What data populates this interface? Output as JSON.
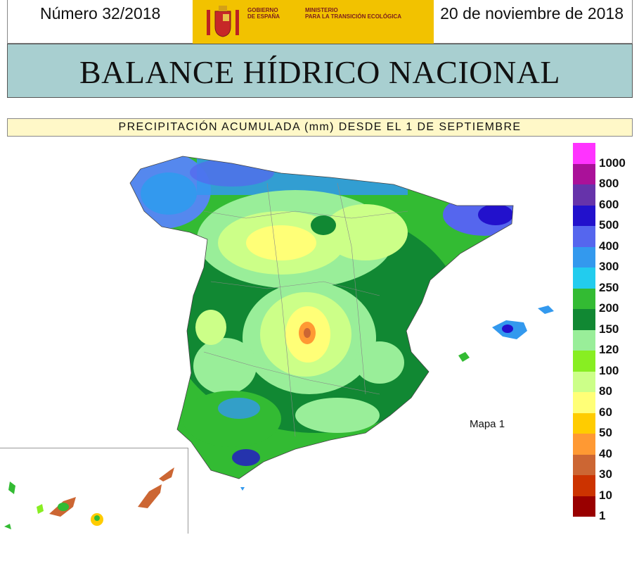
{
  "header": {
    "issue": "Número 32/2018",
    "date": "20 de noviembre de 2018",
    "gobierno": "GOBIERNO\nDE ESPAÑA",
    "ministerio": "MINISTERIO\nPARA LA TRANSICIÓN ECOLÓGICA"
  },
  "title": "BALANCE HÍDRICO NACIONAL",
  "subtitle": "PRECIPITACIÓN ACUMULADA (mm) DESDE EL 1 DE SEPTIEMBRE",
  "map_label": "Mapa 1",
  "legend": {
    "labels": [
      "1000",
      "800",
      "600",
      "500",
      "400",
      "300",
      "250",
      "200",
      "150",
      "120",
      "100",
      "80",
      "60",
      "50",
      "40",
      "30",
      "10",
      "1"
    ],
    "colors": [
      "#ff33ff",
      "#aa1199",
      "#6633aa",
      "#2211cc",
      "#5566ee",
      "#3399ee",
      "#22ccee",
      "#33bb33",
      "#118833",
      "#99ee99",
      "#88ee22",
      "#ccff88",
      "#ffff77",
      "#ffcc00",
      "#ff9933",
      "#cc6633",
      "#cc3300",
      "#990000"
    ]
  }
}
